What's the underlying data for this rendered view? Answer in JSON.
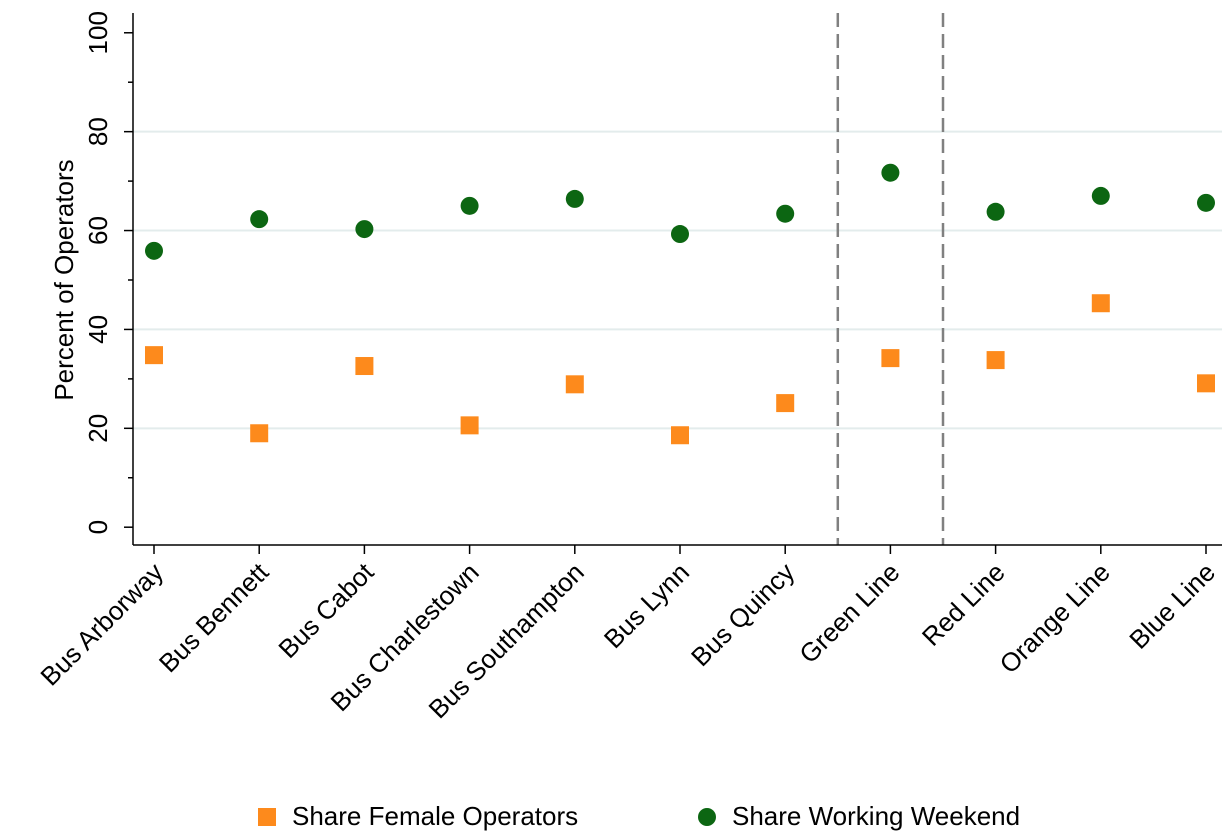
{
  "chart_data": {
    "type": "scatter",
    "y_label": "Percent of Operators",
    "categories": [
      "Bus Arborway",
      "Bus Bennett",
      "Bus Cabot",
      "Bus Charlestown",
      "Bus Southampton",
      "Bus Lynn",
      "Bus Quincy",
      "Green Line",
      "Red Line",
      "Orange Line",
      "Blue Line"
    ],
    "series": [
      {
        "name": "Share Female Operators",
        "color": "#fd8a1c",
        "marker": "square",
        "values": [
          34.8,
          19.0,
          32.6,
          20.6,
          28.9,
          18.6,
          25.1,
          34.2,
          33.8,
          45.3,
          29.1
        ]
      },
      {
        "name": "Share Working Weekend",
        "color": "#0c6612",
        "marker": "circle",
        "values": [
          55.9,
          62.3,
          60.3,
          65.0,
          66.4,
          59.3,
          63.4,
          71.7,
          63.8,
          67.0,
          65.6
        ]
      }
    ],
    "ylim": [
      -3.6,
      104
    ],
    "yticks": [
      0,
      20,
      40,
      60,
      80,
      100
    ],
    "yminorticks": [
      10,
      30,
      50,
      70,
      90
    ],
    "grid": true,
    "separators": [
      6.5,
      7.5
    ],
    "legend": "bottom"
  }
}
